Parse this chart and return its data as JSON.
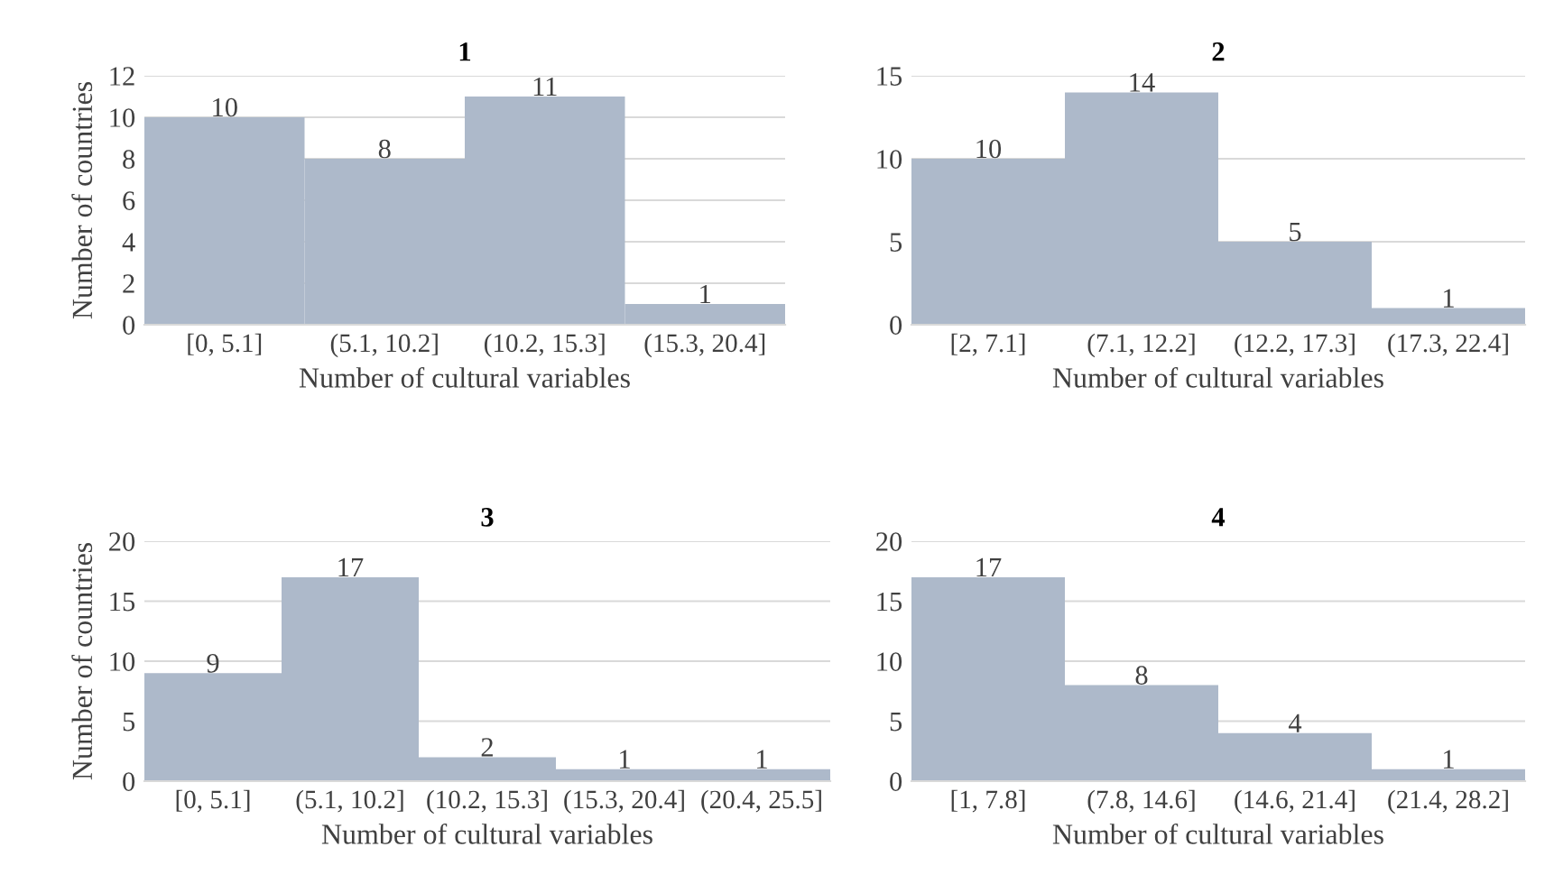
{
  "chart_data": [
    {
      "type": "bar",
      "title": "1",
      "xlabel": "Number of cultural variables",
      "ylabel": "Number of countries",
      "categories": [
        "[0, 5.1]",
        "(5.1, 10.2]",
        "(10.2, 15.3]",
        "(15.3, 20.4]"
      ],
      "values": [
        10,
        8,
        11,
        1
      ],
      "color": "#adb9ca",
      "ylim": [
        0,
        12
      ],
      "yticks": [
        0,
        2,
        4,
        6,
        8,
        10,
        12
      ],
      "grid": "y",
      "data_labels": true
    },
    {
      "type": "bar",
      "title": "2",
      "xlabel": "Number of cultural variables",
      "categories": [
        "[2, 7.1]",
        "(7.1, 12.2]",
        "(12.2, 17.3]",
        "(17.3, 22.4]"
      ],
      "values": [
        10,
        14,
        5,
        1
      ],
      "color": "#adb9ca",
      "ylim": [
        0,
        15
      ],
      "yticks": [
        0,
        5,
        10,
        15
      ],
      "grid": "y",
      "data_labels": true
    },
    {
      "type": "bar",
      "title": "3",
      "xlabel": "Number of cultural variables",
      "ylabel": "Number of countries",
      "categories": [
        "[0, 5.1]",
        "(5.1, 10.2]",
        "(10.2, 15.3]",
        "(15.3, 20.4]",
        "(20.4, 25.5]"
      ],
      "values": [
        9,
        17,
        2,
        1,
        1
      ],
      "color": "#adb9ca",
      "ylim": [
        0,
        20
      ],
      "yticks": [
        0,
        5,
        10,
        15,
        20
      ],
      "grid": "y",
      "data_labels": true
    },
    {
      "type": "bar",
      "title": "4",
      "xlabel": "Number of cultural variables",
      "categories": [
        "[1, 7.8]",
        "(7.8, 14.6]",
        "(14.6, 21.4]",
        "(21.4, 28.2]"
      ],
      "values": [
        17,
        8,
        4,
        1
      ],
      "color": "#adb9ca",
      "ylim": [
        0,
        20
      ],
      "yticks": [
        0,
        5,
        10,
        15,
        20
      ],
      "grid": "y",
      "data_labels": true
    }
  ]
}
